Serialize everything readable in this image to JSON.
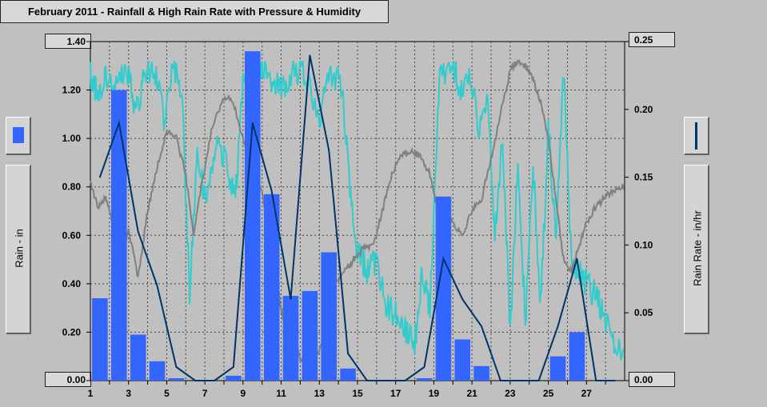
{
  "chart_data": {
    "type": "bar",
    "title": "February 2011 - Rainfall & High Rain Rate with Pressure & Humidity",
    "ylabel": "Rain - in",
    "y2label": "Rain Rate - in/hr",
    "ylim": [
      0,
      1.4
    ],
    "y2lim": [
      0,
      0.25
    ],
    "y_ticks": [
      "0.00",
      "0.20",
      "0.40",
      "0.60",
      "0.80",
      "1.00",
      "1.20",
      "1.40"
    ],
    "y2_ticks": [
      "0.00",
      "0.05",
      "0.10",
      "0.15",
      "0.20",
      "0.25"
    ],
    "x_ticks": [
      "1",
      "3",
      "5",
      "7",
      "9",
      "11",
      "13",
      "15",
      "17",
      "19",
      "21",
      "23",
      "25",
      "27"
    ],
    "xlim": [
      1,
      29
    ],
    "grid": true,
    "days": [
      1,
      2,
      3,
      4,
      5,
      6,
      7,
      8,
      9,
      10,
      11,
      12,
      13,
      14,
      15,
      16,
      17,
      18,
      19,
      20,
      21,
      22,
      23,
      24,
      25,
      26,
      27,
      28
    ],
    "rainfall": [
      0.34,
      1.2,
      0.19,
      0.08,
      0.01,
      0.0,
      0.0,
      0.02,
      1.36,
      0.77,
      0.35,
      0.37,
      0.53,
      0.05,
      0.0,
      0.0,
      0.0,
      0.01,
      0.76,
      0.17,
      0.06,
      0.0,
      0.0,
      0.0,
      0.1,
      0.2,
      0.0,
      0.0
    ],
    "rain_rate": [
      0.15,
      0.19,
      0.11,
      0.07,
      0.01,
      0.0,
      0.0,
      0.01,
      0.19,
      0.14,
      0.06,
      0.24,
      0.17,
      0.02,
      0.0,
      0.0,
      0.0,
      0.01,
      0.09,
      0.06,
      0.04,
      0.0,
      0.0,
      0.0,
      0.04,
      0.09,
      0.0,
      0.0
    ],
    "colors": {
      "rainfall": "#3366ff",
      "rain_rate": "#003366",
      "pressure": "#808080",
      "humidity": "#33cccc",
      "background": "#c0c0c0"
    }
  }
}
